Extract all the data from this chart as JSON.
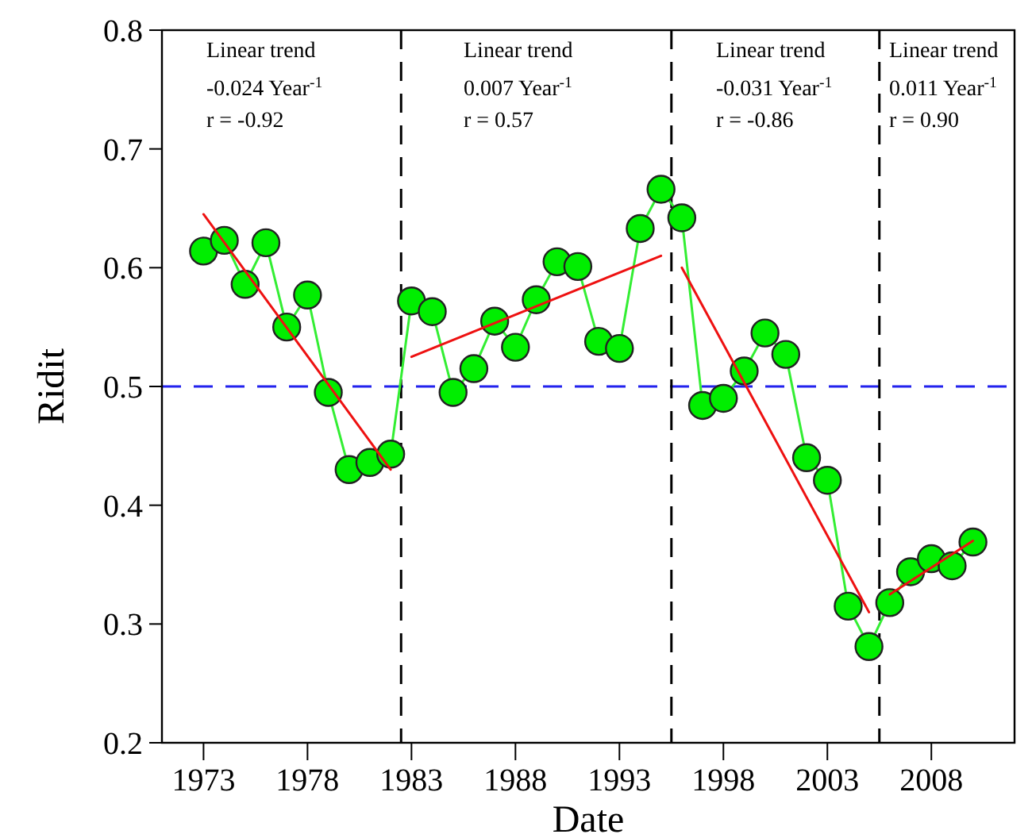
{
  "chart_data": {
    "type": "line",
    "xlabel": "Date",
    "ylabel": "Ridit",
    "x": [
      1973,
      1974,
      1975,
      1976,
      1977,
      1978,
      1979,
      1980,
      1981,
      1982,
      1983,
      1984,
      1985,
      1986,
      1987,
      1988,
      1989,
      1990,
      1991,
      1992,
      1993,
      1994,
      1995,
      1996,
      1997,
      1998,
      1999,
      2000,
      2001,
      2002,
      2003,
      2004,
      2005,
      2006,
      2007,
      2008,
      2009,
      2010
    ],
    "series": [
      {
        "color": "#33ee33",
        "marker": "circle",
        "line_style": "solid",
        "values": [
          0.614,
          0.623,
          0.586,
          0.621,
          0.55,
          0.577,
          0.495,
          0.43,
          0.436,
          0.443,
          0.572,
          0.563,
          0.495,
          0.515,
          0.555,
          0.533,
          0.573,
          0.605,
          0.601,
          0.538,
          0.532,
          0.633,
          0.666,
          0.642,
          0.484,
          0.49,
          0.513,
          0.545,
          0.527,
          0.44,
          0.421,
          0.315,
          0.281,
          0.318,
          0.344,
          0.355,
          0.349,
          0.369
        ]
      },
      {
        "color": "#ee1111",
        "marker": "none",
        "line_style": "solid",
        "x": [
          1973,
          1982
        ],
        "values": [
          0.645,
          0.43
        ]
      },
      {
        "color": "#ee1111",
        "marker": "none",
        "line_style": "solid",
        "x": [
          1983,
          1995
        ],
        "values": [
          0.525,
          0.61
        ]
      },
      {
        "color": "#ee1111",
        "marker": "none",
        "line_style": "solid",
        "x": [
          1996,
          2005
        ],
        "values": [
          0.6,
          0.31
        ]
      },
      {
        "color": "#ee1111",
        "marker": "none",
        "line_style": "solid",
        "x": [
          2006,
          2010
        ],
        "values": [
          0.325,
          0.37
        ]
      }
    ],
    "xlim": [
      1971,
      2012
    ],
    "xticks": [
      1973,
      1978,
      1983,
      1988,
      1993,
      1998,
      2003,
      2008
    ],
    "ylim": [
      0.2,
      0.8
    ],
    "yticks": [
      0.2,
      0.3,
      0.4,
      0.5,
      0.6,
      0.7,
      0.8
    ],
    "grid": false,
    "ref_lines": [
      {
        "axis": "y",
        "value": 0.5,
        "color": "#2222ee",
        "line_style": "dashed"
      },
      {
        "axis": "x",
        "value": 1982.5,
        "color": "#000000",
        "line_style": "dashed"
      },
      {
        "axis": "x",
        "value": 1995.5,
        "color": "#000000",
        "line_style": "dashed"
      },
      {
        "axis": "x",
        "value": 2005.5,
        "color": "#000000",
        "line_style": "dashed"
      }
    ],
    "annotations": [
      "Linear trend",
      "-0.024 Year$^{-1}$",
      "r = -0.92",
      "Linear trend",
      "0.007 Year$^{-1}$",
      "r = 0.57",
      "Linear trend",
      "-0.031 Year$^{-1}$",
      "r = -0.86",
      "Linear trend",
      "0.011 Year$^{-1}$",
      "r = 0.90"
    ]
  }
}
